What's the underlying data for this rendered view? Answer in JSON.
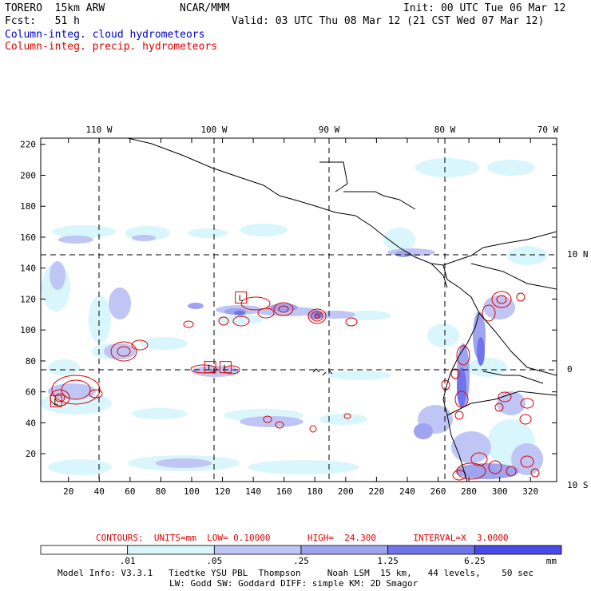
{
  "header": {
    "model": "TORERO  15km ARW",
    "center": "NCAR/MMM",
    "init": "Init: 00 UTC Tue 06 Mar 12",
    "fcst": "Fcst:   51 h",
    "valid": "Valid: 03 UTC Thu 08 Mar 12 (21 CST Wed 07 Mar 12)",
    "legend_cloud": "Column-integ. cloud hydrometeors",
    "legend_precip": "Column-integ. precip. hydrometeors",
    "legend_cloud_color": "#0000cc",
    "legend_precip_color": "#e00000"
  },
  "map": {
    "top_lon_labels": [
      "110 W",
      "100 W",
      "90 W",
      "80 W",
      "70 W"
    ],
    "right_lat_labels": [
      "10 N",
      "0",
      "10 S"
    ],
    "left_ticks": [
      "220",
      "200",
      "180",
      "160",
      "140",
      "120",
      "100",
      "80",
      "60",
      "40",
      "20"
    ],
    "bottom_ticks": [
      "20",
      "40",
      "60",
      "80",
      "100",
      "120",
      "140",
      "160",
      "180",
      "200",
      "220",
      "240",
      "260",
      "280",
      "300",
      "320"
    ],
    "markers": [
      {
        "label": "L",
        "gx": 132,
        "gy": 121
      },
      {
        "label": "L",
        "gx": 112,
        "gy": 76
      },
      {
        "label": "L",
        "gx": 122,
        "gy": 76
      },
      {
        "label": "L",
        "gx": 12,
        "gy": 54
      }
    ]
  },
  "contours": {
    "text": "CONTOURS:  UNITS=mm  LOW= 0.10000       HIGH=  24.300       INTERVAL=X  3.0000"
  },
  "colorbar": {
    "labels": [
      ".01",
      ".05",
      ".25",
      "1.25",
      "6.25"
    ],
    "unit": "mm",
    "colors": [
      "#ffffff",
      "#d8f6fb",
      "#bfc6f5",
      "#9ea4f0",
      "#7074ea",
      "#4a4ae6"
    ]
  },
  "footer": {
    "line1": "Model Info: V3.3.1   Tiedtke YSU PBL  Thompson     Noah LSM  15 km,   44 levels,    50 sec",
    "line2": "LW: Godd SW: Goddard DIFF: simple KM: 2D Smagor"
  }
}
